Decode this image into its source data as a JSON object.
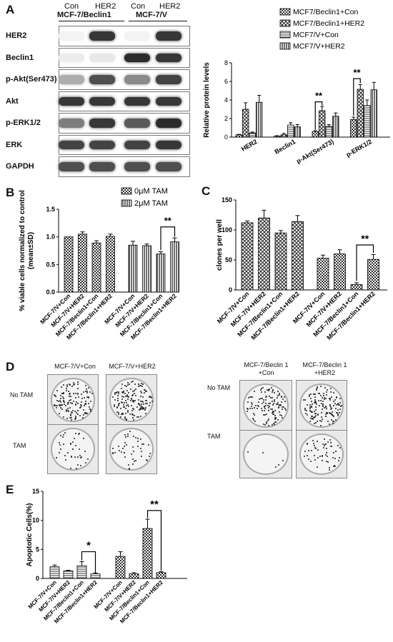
{
  "panels": {
    "A": "A",
    "B": "B",
    "C": "C",
    "D": "D",
    "E": "E"
  },
  "blot": {
    "lane_labels": [
      "Con",
      "HER2",
      "Con",
      "HER2"
    ],
    "group_labels": [
      "MCF-7/Beclin1",
      "MCF-7/V"
    ],
    "rows": [
      {
        "label": "HER2",
        "intensity": [
          0.05,
          0.85,
          0.05,
          0.85
        ]
      },
      {
        "label": "Beclin1",
        "intensity": [
          0.08,
          0.1,
          0.9,
          0.85
        ]
      },
      {
        "label": "p-Akt(Ser473)",
        "intensity": [
          0.35,
          0.75,
          0.5,
          0.8
        ]
      },
      {
        "label": "Akt",
        "intensity": [
          0.85,
          0.85,
          0.85,
          0.85
        ]
      },
      {
        "label": "p-ERK1/2",
        "intensity": [
          0.55,
          0.85,
          0.7,
          0.9
        ]
      },
      {
        "label": "ERK",
        "intensity": [
          0.8,
          0.8,
          0.8,
          0.85
        ]
      },
      {
        "label": "GAPDH",
        "intensity": [
          0.75,
          0.75,
          0.75,
          0.75
        ]
      }
    ]
  },
  "dishes": {
    "left_headers": [
      "MCF-7/V+Con",
      "MCF-7/V+HER2"
    ],
    "right_headers": [
      "MCF-7/Beclin 1\n+Con",
      "MCF-7/Beclin 1\n+HER2"
    ],
    "rows": [
      "No TAM",
      "TAM"
    ]
  },
  "chart_data": [
    {
      "id": "A",
      "type": "bar",
      "title": "",
      "xlabel": "",
      "ylabel": "Relative protein levels",
      "ylim": [
        0,
        8
      ],
      "yticks": [
        "0",
        "2",
        "4",
        "6",
        "8"
      ],
      "categories": [
        "HER2",
        "Beclin1",
        "p-Akt(Ser473)",
        "p-ERK1/2"
      ],
      "legend_position": "top-right",
      "series": [
        {
          "name": "MCF7/Beclin1+Con",
          "pattern": "checker",
          "values": [
            0.25,
            0.1,
            0.6,
            1.9
          ],
          "errors": [
            0.05,
            0.05,
            0.1,
            0.25
          ]
        },
        {
          "name": "MCF7/Beclin1+HER2",
          "pattern": "xhatch",
          "values": [
            3.0,
            0.25,
            2.85,
            5.15
          ],
          "errors": [
            0.7,
            0.15,
            0.45,
            0.5
          ]
        },
        {
          "name": "MCF7/V+Con",
          "pattern": "hlines",
          "values": [
            0.45,
            1.3,
            1.15,
            3.4
          ],
          "errors": [
            0.1,
            0.25,
            0.2,
            0.6
          ]
        },
        {
          "name": "MCF7/V+HER2",
          "pattern": "vlines",
          "values": [
            3.75,
            1.1,
            2.25,
            5.1
          ],
          "errors": [
            0.75,
            0.25,
            0.35,
            0.8
          ]
        }
      ],
      "annotations": [
        "**",
        "**"
      ]
    },
    {
      "id": "B",
      "type": "bar",
      "title": "",
      "xlabel": "",
      "ylabel": "% viable cells normalized to control\n(mean±SD)",
      "ylim": [
        0,
        1.5
      ],
      "yticks": [
        "0.0",
        "0.5",
        "1.0",
        "1.5"
      ],
      "categories": [
        "MCF-7/V+Con",
        "MCF-7/V+HER2",
        "MCF-7/Beclin1+Con",
        "MCF-7/Beclin1+HER2",
        "MCF-7/V+Con",
        "MCF-7/V+HER2",
        "MCF-7/Beclin1+Con",
        "MCF-7/Beclin1+HER2"
      ],
      "legend_position": "top-right",
      "series": [
        {
          "name": "0μM TAM",
          "pattern": "checker",
          "values": [
            1.0,
            1.05,
            0.89,
            1.01,
            null,
            null,
            null,
            null
          ],
          "errors": [
            0.0,
            0.04,
            0.04,
            0.04,
            null,
            null,
            null,
            null
          ]
        },
        {
          "name": "2μM TAM",
          "pattern": "vlines",
          "values": [
            null,
            null,
            null,
            null,
            0.85,
            0.84,
            0.69,
            0.91
          ],
          "errors": [
            null,
            null,
            null,
            null,
            0.07,
            0.03,
            0.04,
            0.07
          ]
        }
      ],
      "annotations": [
        "**"
      ]
    },
    {
      "id": "C",
      "type": "bar",
      "title": "",
      "xlabel": "",
      "ylabel": "clones per well",
      "ylim": [
        0,
        150
      ],
      "yticks": [
        "0",
        "50",
        "100",
        "150"
      ],
      "categories": [
        "MCF-7/V+Con",
        "MCF-7/V+HER2",
        "MCF-7/Beclin1+Con",
        "MCF-7/Beclin1+HER2",
        "MCF-7/V+Con",
        "MCF-7/V+HER2",
        "MCF-7/Beclin1+Con",
        "MCF-7/Beclin1+HER2"
      ],
      "series": [
        {
          "name": "",
          "pattern": "xhatch",
          "values": [
            112,
            120,
            95,
            114,
            null,
            null,
            null,
            null
          ],
          "errors": [
            3,
            13,
            4,
            10,
            null,
            null,
            null,
            null
          ]
        },
        {
          "name": "",
          "pattern": "checker",
          "values": [
            null,
            null,
            null,
            null,
            53,
            60,
            9,
            51
          ],
          "errors": [
            null,
            null,
            null,
            null,
            5,
            7,
            3,
            8
          ]
        }
      ],
      "annotations": [
        "**"
      ]
    },
    {
      "id": "E",
      "type": "bar",
      "title": "",
      "xlabel": "",
      "ylabel": "Apoptotic Cells(%)",
      "ylim": [
        0,
        15
      ],
      "yticks": [
        "0",
        "5",
        "10",
        "15"
      ],
      "categories": [
        "MCF-7/V+Con",
        "MCF-7/V+HER2",
        "MCF-7/Beclin1+Con",
        "MCF-7/Beclin1+HER2",
        "MCF-7/V+Con",
        "MCF-7/V+HER2",
        "MCF-7/Beclin1+Con",
        "MCF-7/Beclin1+HER2"
      ],
      "series": [
        {
          "name": "",
          "pattern": "hlines",
          "values": [
            2.0,
            1.3,
            2.2,
            0.8,
            null,
            null,
            null,
            null
          ],
          "errors": [
            0.3,
            0.1,
            0.7,
            0.15,
            null,
            null,
            null,
            null
          ]
        },
        {
          "name": "",
          "pattern": "checker",
          "values": [
            null,
            null,
            null,
            null,
            3.8,
            0.8,
            8.6,
            1.0
          ],
          "errors": [
            null,
            null,
            null,
            null,
            0.8,
            0.2,
            1.6,
            0.15
          ]
        }
      ],
      "annotations": [
        "*",
        "**"
      ]
    }
  ]
}
